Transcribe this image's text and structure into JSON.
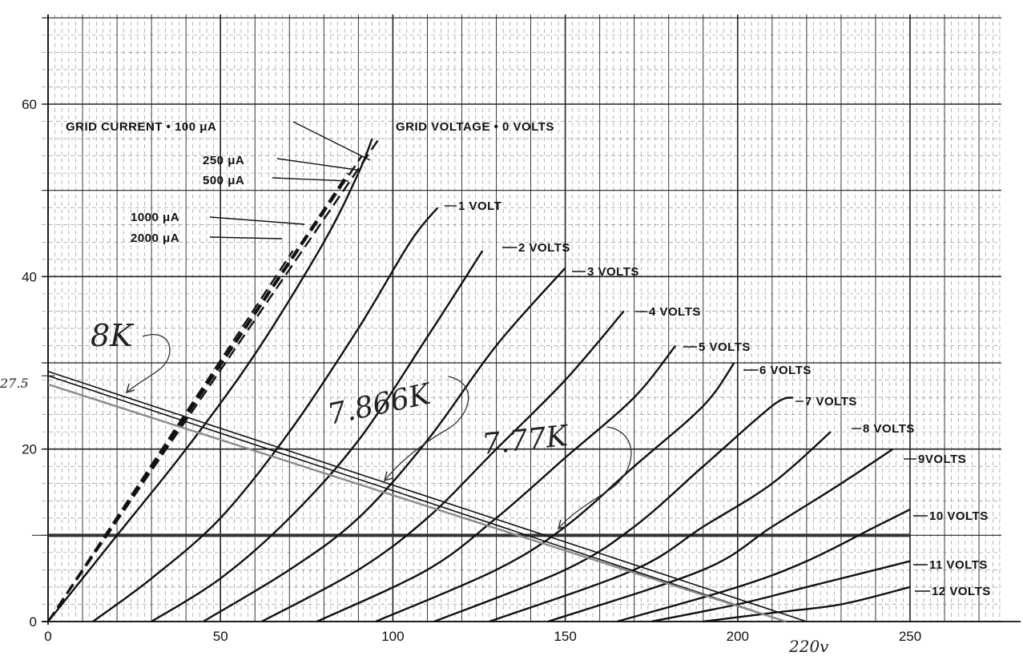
{
  "chart_data": {
    "type": "line",
    "x_ticks": [
      "0",
      "50",
      "100",
      "150",
      "200",
      "250"
    ],
    "y_ticks": [
      "0",
      "20",
      "40",
      "60"
    ],
    "xlim": [
      0,
      282
    ],
    "ylim": [
      0,
      70
    ],
    "grid": true,
    "plate_curves": [
      {
        "label": "GRID VOLTAGE • 0 VOLTS",
        "points": [
          [
            0,
            0
          ],
          [
            20,
            10
          ],
          [
            40,
            20
          ],
          [
            60,
            31
          ],
          [
            80,
            44
          ],
          [
            90,
            52
          ],
          [
            94,
            56
          ]
        ]
      },
      {
        "label": "1 VOLT",
        "points": [
          [
            13,
            0
          ],
          [
            30,
            5
          ],
          [
            50,
            12
          ],
          [
            70,
            22
          ],
          [
            90,
            34
          ],
          [
            105,
            44
          ],
          [
            113,
            48
          ]
        ]
      },
      {
        "label": "2 VOLTS",
        "points": [
          [
            30,
            0
          ],
          [
            50,
            5
          ],
          [
            70,
            12
          ],
          [
            90,
            21
          ],
          [
            110,
            33
          ],
          [
            126,
            43
          ]
        ]
      },
      {
        "label": "3 VOLTS",
        "points": [
          [
            45,
            0
          ],
          [
            70,
            6
          ],
          [
            90,
            12
          ],
          [
            110,
            21
          ],
          [
            130,
            32
          ],
          [
            150,
            41
          ]
        ]
      },
      {
        "label": "4 VOLTS",
        "points": [
          [
            62,
            0
          ],
          [
            90,
            6
          ],
          [
            110,
            12
          ],
          [
            130,
            20
          ],
          [
            150,
            28
          ],
          [
            167,
            36
          ]
        ]
      },
      {
        "label": "5 VOLTS",
        "points": [
          [
            78,
            0
          ],
          [
            110,
            6
          ],
          [
            130,
            12
          ],
          [
            150,
            19
          ],
          [
            170,
            26
          ],
          [
            182,
            32
          ]
        ]
      },
      {
        "label": "6 VOLTS",
        "points": [
          [
            95,
            0
          ],
          [
            130,
            6
          ],
          [
            150,
            11
          ],
          [
            170,
            18
          ],
          [
            190,
            25
          ],
          [
            199,
            30
          ]
        ]
      },
      {
        "label": "7 VOLTS",
        "points": [
          [
            112,
            0
          ],
          [
            150,
            6
          ],
          [
            170,
            11
          ],
          [
            190,
            18
          ],
          [
            210,
            25
          ],
          [
            216,
            26
          ]
        ]
      },
      {
        "label": "8 VOLTS",
        "points": [
          [
            128,
            0
          ],
          [
            170,
            6
          ],
          [
            190,
            11
          ],
          [
            210,
            16
          ],
          [
            227,
            22
          ]
        ]
      },
      {
        "label": "9VOLTS",
        "points": [
          [
            145,
            0
          ],
          [
            190,
            6
          ],
          [
            210,
            11
          ],
          [
            230,
            16
          ],
          [
            245,
            20
          ]
        ]
      },
      {
        "label": "10 VOLTS",
        "points": [
          [
            165,
            0
          ],
          [
            200,
            4
          ],
          [
            220,
            7
          ],
          [
            240,
            11
          ],
          [
            250,
            13
          ]
        ]
      },
      {
        "label": "11 VOLTS",
        "points": [
          [
            175,
            0
          ],
          [
            200,
            2
          ],
          [
            220,
            4
          ],
          [
            240,
            6
          ],
          [
            250,
            7
          ]
        ]
      },
      {
        "label": "12 VOLTS",
        "points": [
          [
            190,
            0
          ],
          [
            210,
            1
          ],
          [
            230,
            2
          ],
          [
            250,
            4
          ]
        ]
      }
    ],
    "grid_current_lines": [
      {
        "label": "GRID CURRENT • 100 μA",
        "points": [
          [
            0,
            0
          ],
          [
            96,
            56
          ]
        ]
      },
      {
        "label": "250 μA",
        "points": [
          [
            0,
            0
          ],
          [
            91,
            54
          ]
        ]
      },
      {
        "label": "500 μA",
        "points": [
          [
            0,
            0
          ],
          [
            87,
            52
          ]
        ]
      },
      {
        "label": "1000 μA",
        "points": [
          [
            0,
            0
          ],
          [
            79,
            47
          ]
        ]
      },
      {
        "label": "2000 μA",
        "points": [
          [
            0,
            0
          ],
          [
            71,
            43
          ]
        ]
      }
    ],
    "load_lines": [
      {
        "label": "8K",
        "points": [
          [
            0,
            29
          ],
          [
            220,
            0
          ]
        ]
      },
      {
        "label": "7.866K",
        "points": [
          [
            0,
            28.5
          ],
          [
            214,
            0
          ]
        ]
      },
      {
        "label": "7.77K",
        "points": [
          [
            0,
            27.5
          ],
          [
            214,
            0
          ]
        ]
      }
    ],
    "reference_line_y": 10,
    "handwritten_labels": {
      "y_intercept": "27.5",
      "x_intercept": "220v",
      "load_8k": "8K",
      "load_7866": "7.866K",
      "load_777": "7.77K"
    },
    "colors": {
      "grid": "#222222",
      "ink": "#111111",
      "pencil": "#555555",
      "load_line_gray": "#8a8a8a"
    }
  }
}
